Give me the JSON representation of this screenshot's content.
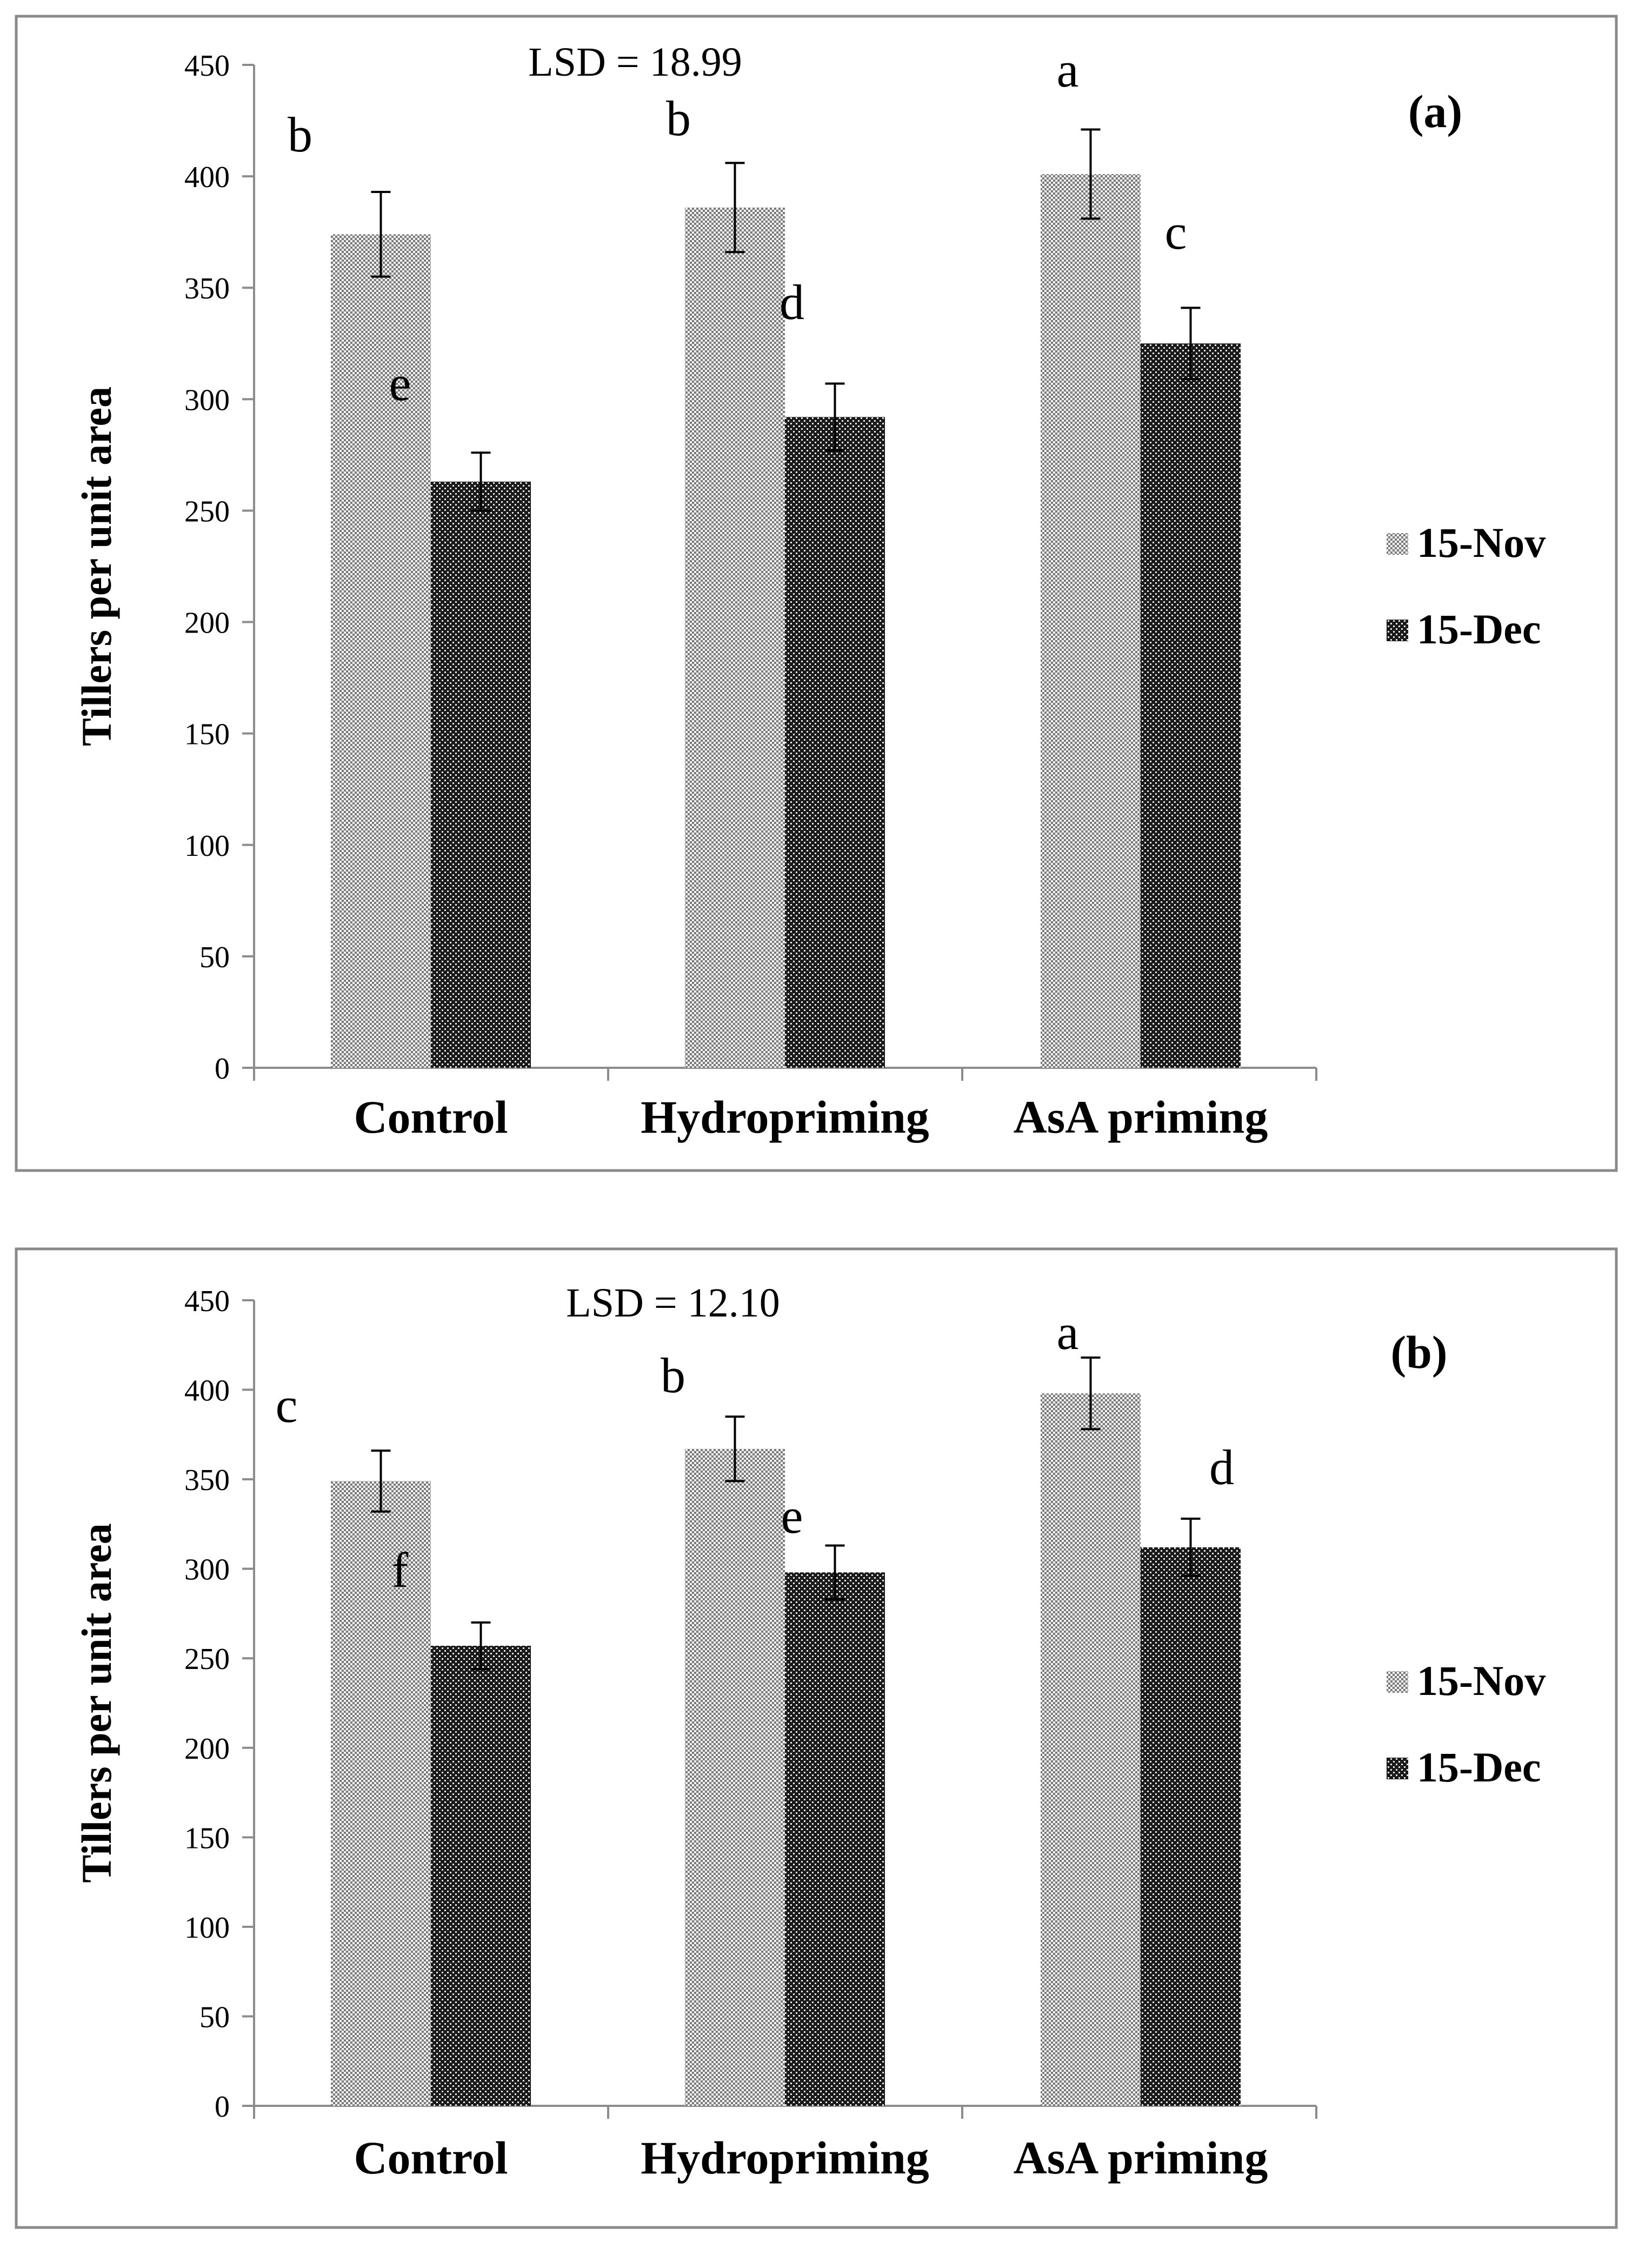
{
  "chart_data": [
    {
      "type": "bar",
      "panel_label": "(a)",
      "annotation": "LSD = 18.99",
      "ylabel": "Tillers per unit area",
      "xlabel": "",
      "ylim": [
        0,
        450
      ],
      "yticks": [
        "0",
        "50",
        "100",
        "150",
        "200",
        "250",
        "300",
        "350",
        "400",
        "450"
      ],
      "categories": [
        "Control",
        "Hydropriming",
        "AsA priming"
      ],
      "series": [
        {
          "name": "15-Nov",
          "values": [
            374,
            386,
            401
          ],
          "errors": [
            19,
            20,
            20
          ],
          "letters": [
            "b",
            "b",
            "a"
          ]
        },
        {
          "name": "15-Dec",
          "values": [
            263,
            292,
            325
          ],
          "errors": [
            13,
            15,
            16
          ],
          "letters": [
            "e",
            "d",
            "c"
          ]
        }
      ],
      "legend_position": "right"
    },
    {
      "type": "bar",
      "panel_label": "(b)",
      "annotation": "LSD = 12.10",
      "ylabel": "Tillers per unit area",
      "xlabel": "",
      "ylim": [
        0,
        450
      ],
      "yticks": [
        "0",
        "50",
        "100",
        "150",
        "200",
        "250",
        "300",
        "350",
        "400",
        "450"
      ],
      "categories": [
        "Control",
        "Hydropriming",
        "AsA priming"
      ],
      "series": [
        {
          "name": "15-Nov",
          "values": [
            349,
            367,
            398
          ],
          "errors": [
            17,
            18,
            20
          ],
          "letters": [
            "c",
            "b",
            "a"
          ]
        },
        {
          "name": "15-Dec",
          "values": [
            257,
            298,
            312
          ],
          "errors": [
            13,
            15,
            16
          ],
          "letters": [
            "f",
            "e",
            "d"
          ]
        }
      ],
      "legend_position": "right"
    }
  ],
  "colors": {
    "nov_fill": "#8f8f8f",
    "dec_fill": "#3a3a3a",
    "frame": "#8a8a8a",
    "axis": "#8c8c8c"
  }
}
